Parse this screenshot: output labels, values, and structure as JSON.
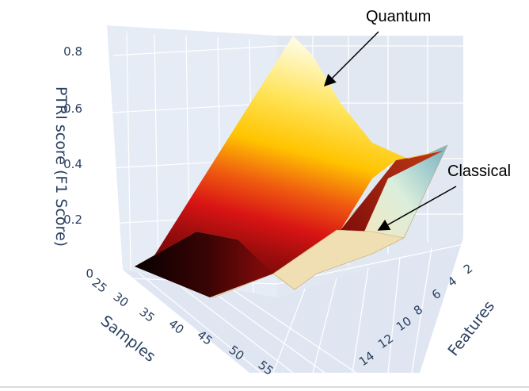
{
  "chart_data": {
    "type": "surface",
    "zlabel": "PTRI score (F1 Score)",
    "xlabel": "Samples",
    "ylabel": "Features",
    "x_ticks": [
      "25",
      "30",
      "35",
      "40",
      "45",
      "50",
      "55"
    ],
    "y_ticks": [
      "2",
      "4",
      "6",
      "8",
      "10",
      "12",
      "14"
    ],
    "z_ticks": [
      "0",
      "0.2",
      "0.4",
      "0.6",
      "0.8"
    ],
    "xlim": [
      25,
      58
    ],
    "ylim": [
      1,
      15
    ],
    "zlim": [
      0,
      0.85
    ],
    "series": [
      {
        "name": "Quantum",
        "colorscale": "hot",
        "samples": [
          27,
          58
        ],
        "features": [
          2,
          14
        ],
        "z": [
          [
            0.0,
            0.45
          ],
          [
            0.0,
            0.85
          ]
        ]
      },
      {
        "name": "Classical",
        "colorscale": "bone",
        "samples": [
          27,
          58
        ],
        "features": [
          2,
          14
        ],
        "z": [
          [
            0.0,
            0.45
          ],
          [
            0.1,
            0.08
          ]
        ]
      }
    ],
    "annotations": [
      {
        "text": "Quantum",
        "points_to": "Quantum"
      },
      {
        "text": "Classical",
        "points_to": "Classical"
      }
    ],
    "colors": {
      "pane_background": "#e5ecf6",
      "grid": "#ffffff",
      "axis_text": "#2a3f5f"
    }
  }
}
